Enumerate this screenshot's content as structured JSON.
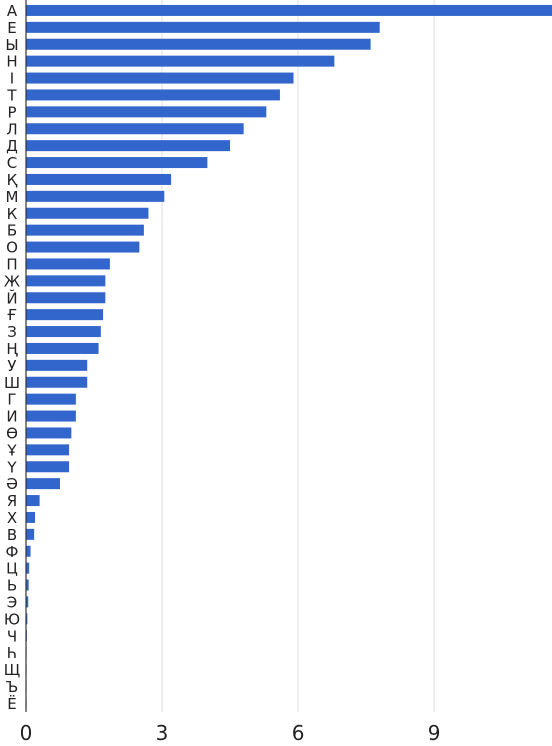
{
  "chart_data": {
    "type": "bar",
    "orientation": "horizontal",
    "categories": [
      "А",
      "Е",
      "Ы",
      "Н",
      "І",
      "Т",
      "Р",
      "Л",
      "Д",
      "С",
      "Қ",
      "М",
      "К",
      "Б",
      "О",
      "П",
      "Ж",
      "Й",
      "Ғ",
      "З",
      "Ң",
      "У",
      "Ш",
      "Г",
      "И",
      "Ө",
      "Ұ",
      "Ү",
      "Ә",
      "Я",
      "Х",
      "В",
      "Ф",
      "Ц",
      "Ь",
      "Э",
      "Ю",
      "Ч",
      "Һ",
      "Щ",
      "Ъ",
      "Ё"
    ],
    "values": [
      11.6,
      7.8,
      7.6,
      6.8,
      5.9,
      5.6,
      5.3,
      4.8,
      4.5,
      4.0,
      3.2,
      3.05,
      2.7,
      2.6,
      2.5,
      1.85,
      1.75,
      1.75,
      1.7,
      1.65,
      1.6,
      1.35,
      1.35,
      1.1,
      1.1,
      1.0,
      0.95,
      0.95,
      0.75,
      0.3,
      0.2,
      0.18,
      0.1,
      0.07,
      0.06,
      0.05,
      0.03,
      0.02,
      0.01,
      0.005,
      0.003,
      0.003
    ],
    "x_ticks": [
      "0",
      "3",
      "6",
      "9"
    ],
    "xlim": [
      0,
      11.6
    ],
    "grid": true,
    "bar_color": "#3366cc",
    "grid_color": "#e0e0e0"
  }
}
